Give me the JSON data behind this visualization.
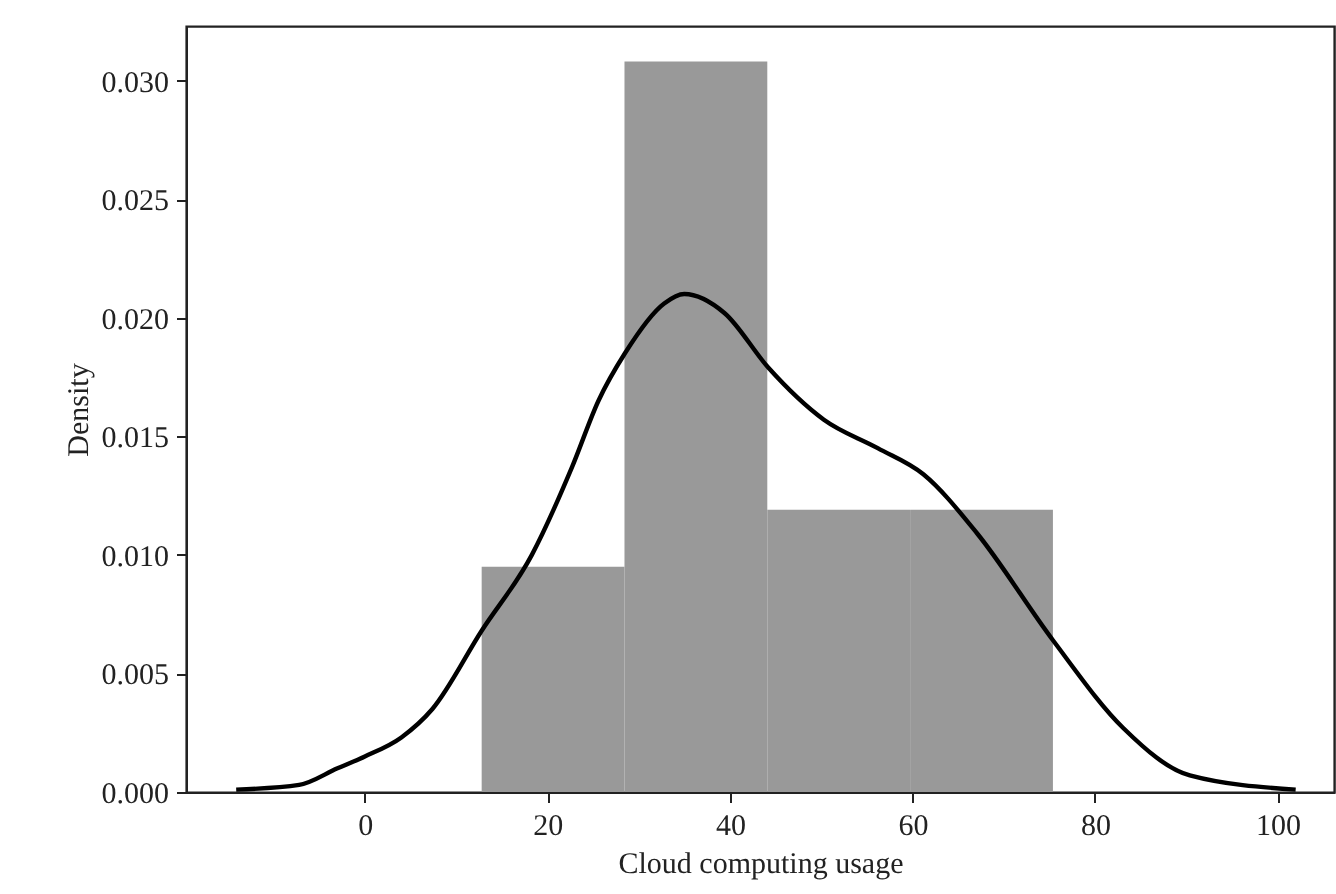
{
  "chart_data": {
    "type": "histogram",
    "xlabel": "Cloud computing usage",
    "ylabel": "Density",
    "bins": [
      12.8,
      28.45,
      44.1,
      59.75,
      75.4
    ],
    "values": [
      0.0095,
      0.0308,
      0.0119,
      0.0119
    ],
    "color": "#999999",
    "series": [
      {
        "type": "line",
        "color": "#000000",
        "line_style": "solid",
        "x": [
          -14.1,
          -7.2,
          -3,
          0,
          4,
          7.4,
          12.8,
          18.3,
          22.7,
          25.6,
          28.5,
          32.8,
          35.0,
          39.4,
          44.2,
          50.3,
          56.2,
          61.2,
          67.1,
          75.4,
          83.1,
          90.4,
          102.0
        ],
        "values": [
          0.0001,
          0.0003,
          0.001,
          0.0015,
          0.0023,
          0.0035,
          0.0068,
          0.01,
          0.0137,
          0.0165,
          0.0185,
          0.0206,
          0.021,
          0.0202,
          0.0179,
          0.0157,
          0.0145,
          0.0134,
          0.0109,
          0.0064,
          0.0027,
          0.0007,
          0.0001
        ]
      }
    ],
    "xlim": [
      -19.6,
      106.2
    ],
    "xticks": [
      0,
      20,
      40,
      60,
      80,
      100
    ],
    "ylim": [
      0,
      0.0323
    ],
    "yticks": [
      {
        "value": 0,
        "label": "0.000"
      },
      {
        "value": 0.005,
        "label": "0.005"
      },
      {
        "value": 0.01,
        "label": "0.010"
      },
      {
        "value": 0.015,
        "label": "0.015"
      },
      {
        "value": 0.02,
        "label": "0.020"
      },
      {
        "value": 0.025,
        "label": "0.025"
      },
      {
        "value": 0.03,
        "label": "0.030"
      }
    ],
    "grid": false
  }
}
